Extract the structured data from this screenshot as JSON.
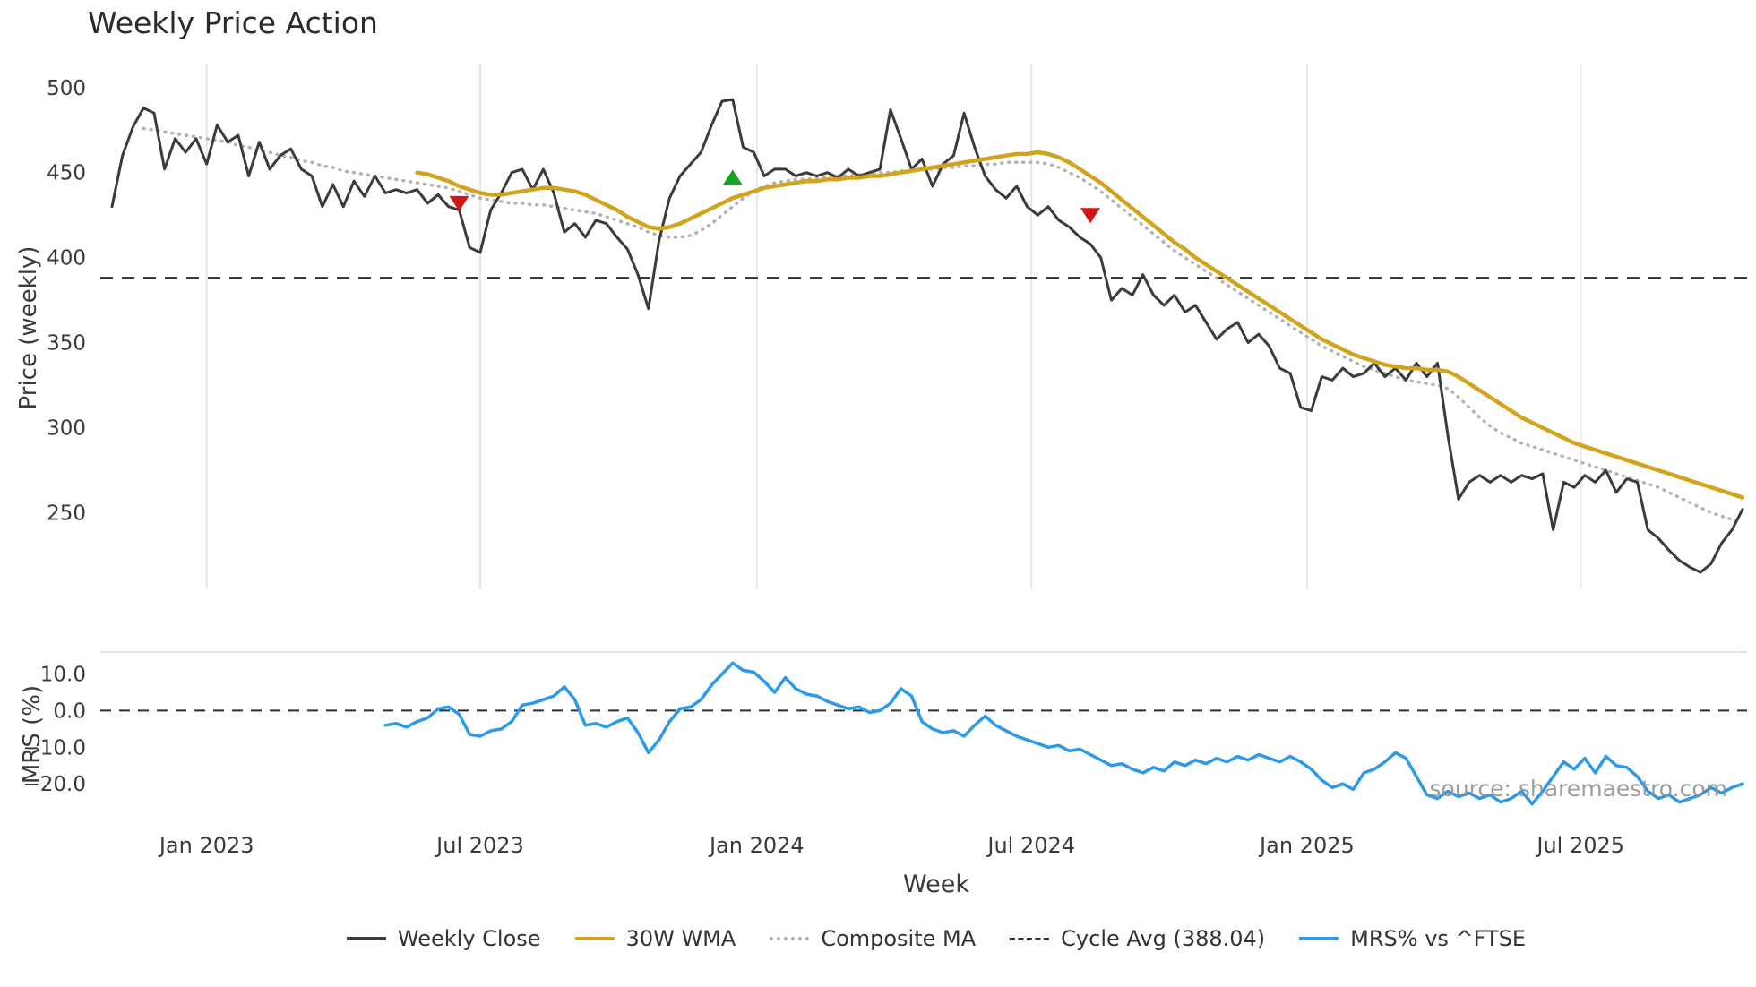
{
  "source_note": "source: sharemaestro.com",
  "chart_data": {
    "type": "line",
    "title": "Weekly Price Action",
    "xlabel": "Week",
    "weeks_total": 156,
    "x_tick_labels": [
      "Jan 2023",
      "Jul 2023",
      "Jan 2024",
      "Jul 2024",
      "Jan 2025",
      "Jul 2025"
    ],
    "x_tick_weeks": [
      9,
      35,
      61.3,
      87.4,
      113.6,
      139.6
    ],
    "grid": "vertical-light",
    "legend_position": "bottom-center",
    "panels": [
      {
        "name": "price",
        "ylabel": "Price (weekly)",
        "ylim": [
          205,
          512
        ],
        "yticks": [
          250,
          300,
          350,
          400,
          450,
          500
        ],
        "hline": {
          "name": "Cycle Avg",
          "value": 388.04,
          "style": "dashed",
          "color": "#2f2f2f"
        },
        "markers": [
          {
            "shape": "triangle-down",
            "color": "#d01616",
            "week": 33,
            "value": 432
          },
          {
            "shape": "triangle-up",
            "color": "#17a325",
            "week": 59,
            "value": 447
          },
          {
            "shape": "triangle-down",
            "color": "#d01616",
            "week": 93,
            "value": 425
          }
        ],
        "series": [
          {
            "name": "Composite MA",
            "color": "#b3b3b3",
            "style": "dotted",
            "width": 3.5,
            "start_week": 3,
            "values": [
              476,
              475,
              474,
              473,
              472,
              471,
              470,
              469,
              468,
              466,
              465,
              463,
              462,
              460,
              459,
              457,
              456,
              454,
              453,
              451,
              450,
              449,
              448,
              447,
              446,
              445,
              444,
              443,
              442,
              441,
              439,
              437,
              435,
              434,
              433,
              432,
              432,
              431,
              431,
              430,
              429,
              428,
              427,
              426,
              424,
              422,
              420,
              418,
              415,
              413,
              412,
              412,
              413,
              416,
              420,
              425,
              430,
              435,
              439,
              442,
              444,
              445,
              446,
              446,
              447,
              447,
              448,
              448,
              449,
              449,
              450,
              450,
              451,
              451,
              452,
              452,
              453,
              453,
              454,
              454,
              455,
              455,
              456,
              456,
              456,
              456,
              455,
              453,
              450,
              447,
              443,
              439,
              434,
              429,
              424,
              419,
              414,
              409,
              404,
              400,
              396,
              392,
              388,
              384,
              380,
              376,
              372,
              368,
              364,
              360,
              356,
              352,
              348,
              345,
              342,
              339,
              336,
              334,
              332,
              330,
              328,
              327,
              326,
              325,
              323,
              318,
              312,
              306,
              301,
              297,
              294,
              291,
              289,
              287,
              285,
              283,
              281,
              279,
              277,
              275,
              273,
              271,
              269,
              267,
              265,
              262,
              259,
              256,
              253,
              250,
              248,
              246,
              245
            ]
          },
          {
            "name": "Weekly Close",
            "color": "#3b3b3b",
            "style": "solid",
            "width": 3,
            "start_week": 0,
            "values": [
              430,
              460,
              477,
              488,
              485,
              452,
              470,
              462,
              470,
              455,
              478,
              468,
              472,
              448,
              468,
              452,
              460,
              464,
              452,
              448,
              430,
              443,
              430,
              445,
              436,
              448,
              438,
              440,
              438,
              440,
              432,
              437,
              430,
              428,
              406,
              403,
              428,
              438,
              450,
              452,
              440,
              452,
              438,
              415,
              420,
              412,
              422,
              420,
              412,
              405,
              390,
              370,
              410,
              435,
              448,
              455,
              462,
              478,
              492,
              493,
              465,
              462,
              448,
              452,
              452,
              448,
              450,
              448,
              450,
              447,
              452,
              448,
              450,
              452,
              487,
              470,
              452,
              458,
              442,
              455,
              460,
              485,
              465,
              448,
              440,
              435,
              442,
              430,
              425,
              430,
              422,
              418,
              412,
              408,
              400,
              375,
              382,
              378,
              390,
              378,
              372,
              378,
              368,
              372,
              362,
              352,
              358,
              362,
              350,
              355,
              348,
              335,
              332,
              312,
              310,
              330,
              328,
              335,
              330,
              332,
              338,
              330,
              335,
              328,
              338,
              330,
              338,
              295,
              258,
              268,
              272,
              268,
              272,
              268,
              272,
              270,
              273,
              240,
              268,
              265,
              272,
              268,
              275,
              262,
              270,
              268,
              240,
              235,
              228,
              222,
              218,
              215,
              220,
              232,
              240,
              252
            ]
          },
          {
            "name": "30W WMA",
            "color": "#d2a41e",
            "style": "solid",
            "width": 4.5,
            "start_week": 29,
            "values": [
              450,
              449,
              447,
              445,
              442,
              440,
              438,
              437,
              437,
              438,
              439,
              440,
              441,
              441,
              440,
              439,
              437,
              434,
              431,
              428,
              424,
              421,
              418,
              417,
              418,
              420,
              423,
              426,
              429,
              432,
              435,
              437,
              439,
              441,
              442,
              443,
              444,
              445,
              445,
              446,
              446,
              447,
              447,
              448,
              448,
              449,
              450,
              451,
              452,
              453,
              454,
              455,
              456,
              457,
              458,
              459,
              460,
              461,
              461,
              462,
              461,
              459,
              456,
              452,
              448,
              444,
              439,
              434,
              429,
              424,
              419,
              414,
              409,
              405,
              400,
              396,
              392,
              388,
              384,
              380,
              376,
              372,
              368,
              364,
              360,
              356,
              352,
              349,
              346,
              343,
              341,
              339,
              337,
              336,
              335,
              335,
              334,
              334,
              333,
              330,
              326,
              322,
              318,
              314,
              310,
              306,
              303,
              300,
              297,
              294,
              291,
              289,
              287,
              285,
              283,
              281,
              279,
              277,
              275,
              273,
              271,
              269,
              267,
              265,
              263,
              261,
              259
            ]
          }
        ]
      },
      {
        "name": "mrs",
        "ylabel": "MRS (%)",
        "ylim": [
          -29,
          16
        ],
        "yticks": [
          10,
          0,
          -10,
          -20
        ],
        "ytick_labels": [
          "10.0",
          "0.0",
          "−10.0",
          "−20.0"
        ],
        "hline": {
          "name": "zero",
          "value": 0,
          "style": "dashed",
          "color": "#2f2f2f"
        },
        "series": [
          {
            "name": "MRS% vs ^FTSE",
            "color": "#2d9ae8",
            "style": "solid",
            "width": 3.5,
            "start_week": 26,
            "values": [
              -4,
              -3.5,
              -4.5,
              -3,
              -2,
              0.5,
              1,
              -1,
              -6.5,
              -7,
              -5.5,
              -5,
              -3,
              1.5,
              2,
              3,
              4,
              6.5,
              3,
              -4,
              -3.5,
              -4.5,
              -3,
              -2,
              -6,
              -11.5,
              -8,
              -3,
              0.5,
              1,
              3,
              7,
              10,
              13,
              11,
              10.5,
              8,
              5,
              9,
              6,
              4.5,
              4,
              2.5,
              1.5,
              0.5,
              1,
              -0.5,
              0,
              2,
              6,
              4,
              -3,
              -5,
              -6,
              -5.5,
              -7,
              -4,
              -1.5,
              -4,
              -5.5,
              -7,
              -8,
              -9,
              -10,
              -9.5,
              -11,
              -10.5,
              -12,
              -13.5,
              -15,
              -14.5,
              -16,
              -17,
              -15.5,
              -16.5,
              -14,
              -15,
              -13.5,
              -14.5,
              -13,
              -14,
              -12.5,
              -13.5,
              -12,
              -13,
              -14,
              -12.5,
              -14,
              -16,
              -19,
              -21,
              -20,
              -21.5,
              -17,
              -16,
              -14,
              -11.5,
              -13,
              -18,
              -23,
              -24,
              -22,
              -23.5,
              -22.5,
              -24,
              -23,
              -25,
              -24,
              -22,
              -25.5,
              -22,
              -18,
              -14,
              -16,
              -13,
              -17,
              -12.5,
              -15,
              -15.5,
              -18,
              -22,
              -24,
              -23,
              -25,
              -24,
              -23,
              -21,
              -22.5,
              -21,
              -20
            ]
          }
        ]
      }
    ],
    "legend": [
      {
        "label": "Weekly Close",
        "swatch": "solid",
        "color": "#3b3b3b"
      },
      {
        "label": "30W WMA",
        "swatch": "solid",
        "color": "#d2a41e"
      },
      {
        "label": "Composite MA",
        "swatch": "dotted",
        "color": "#b3b3b3"
      },
      {
        "label": "Cycle Avg (388.04)",
        "swatch": "dashed",
        "color": "#2f2f2f"
      },
      {
        "label": "MRS% vs ^FTSE",
        "swatch": "solid",
        "color": "#2d9ae8"
      }
    ]
  }
}
